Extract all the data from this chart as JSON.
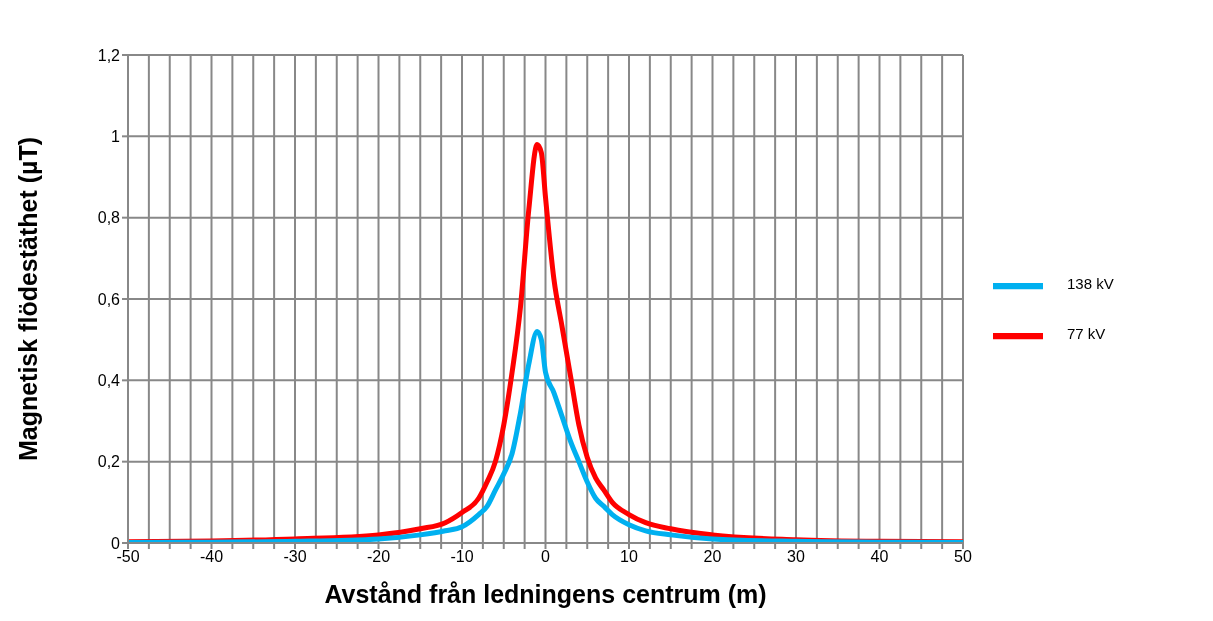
{
  "chart_data": {
    "type": "line",
    "xlabel": "Avstånd från ledningens centrum (m)",
    "ylabel": "Magnetisk flödestäthet (µT)",
    "xlim": [
      -50,
      50
    ],
    "xticks": [
      -50,
      {
        "value": -47.5,
        "label": null
      },
      {
        "value": -45,
        "label": null
      },
      {
        "value": -42.5,
        "label": null
      },
      -40,
      {
        "value": -37.5,
        "label": null
      },
      {
        "value": -35,
        "label": null
      },
      {
        "value": -32.5,
        "label": null
      },
      -30,
      {
        "value": -27.5,
        "label": null
      },
      {
        "value": -25,
        "label": null
      },
      {
        "value": -22.5,
        "label": null
      },
      -20,
      {
        "value": -17.5,
        "label": null
      },
      {
        "value": -15,
        "label": null
      },
      {
        "value": -12.5,
        "label": null
      },
      -10,
      {
        "value": -7.5,
        "label": null
      },
      {
        "value": -5,
        "label": null
      },
      {
        "value": -2.5,
        "label": null
      },
      0,
      {
        "value": 2.5,
        "label": null
      },
      {
        "value": 5,
        "label": null
      },
      {
        "value": 7.5,
        "label": null
      },
      10,
      {
        "value": 12.5,
        "label": null
      },
      {
        "value": 15,
        "label": null
      },
      {
        "value": 17.5,
        "label": null
      },
      20,
      {
        "value": 22.5,
        "label": null
      },
      {
        "value": 25,
        "label": null
      },
      {
        "value": 27.5,
        "label": null
      },
      30,
      {
        "value": 32.5,
        "label": null
      },
      {
        "value": 35,
        "label": null
      },
      {
        "value": 37.5,
        "label": null
      },
      40,
      {
        "value": 42.5,
        "label": null
      },
      {
        "value": 45,
        "label": null
      },
      {
        "value": 47.5,
        "label": null
      },
      50
    ],
    "ylim": [
      0,
      1.2
    ],
    "yticks": [
      0,
      {
        "value": 0.2,
        "label": "0,2"
      },
      {
        "value": 0.4,
        "label": "0,4"
      },
      {
        "value": 0.6,
        "label": "0,6"
      },
      {
        "value": 0.8,
        "label": "0,8"
      },
      1,
      {
        "value": 1.2,
        "label": "1,2"
      }
    ],
    "grid": true,
    "legend": "right",
    "marker": "none",
    "line_style": "solid",
    "series": [
      {
        "name": "77 kV",
        "color": "#ff0000",
        "x": [
          -50,
          -40,
          -30,
          -20,
          -15,
          -12,
          -10,
          -8,
          -7,
          -6,
          -5,
          -4,
          -3,
          -2,
          -1,
          -0.5,
          0,
          1,
          2,
          3,
          4,
          5,
          6,
          7,
          8,
          10,
          12,
          15,
          20,
          30,
          40,
          50
        ],
        "values": [
          0.003,
          0.005,
          0.01,
          0.02,
          0.035,
          0.05,
          0.075,
          0.11,
          0.15,
          0.2,
          0.29,
          0.42,
          0.58,
          0.82,
          0.98,
          0.96,
          0.85,
          0.65,
          0.53,
          0.41,
          0.29,
          0.21,
          0.16,
          0.13,
          0.1,
          0.07,
          0.05,
          0.035,
          0.02,
          0.008,
          0.004,
          0.003
        ]
      },
      {
        "name": "138 kV",
        "color": "#00b0f0",
        "x": [
          -50,
          -40,
          -30,
          -20,
          -15,
          -12,
          -10,
          -8,
          -7,
          -6,
          -5,
          -4,
          -3,
          -2,
          -1,
          -0.5,
          0,
          1,
          2,
          3,
          4,
          5,
          6,
          7,
          8,
          10,
          12,
          15,
          20,
          30,
          40,
          50
        ],
        "values": [
          0.001,
          0.002,
          0.004,
          0.01,
          0.02,
          0.03,
          0.04,
          0.07,
          0.09,
          0.13,
          0.17,
          0.22,
          0.32,
          0.44,
          0.52,
          0.5,
          0.42,
          0.37,
          0.31,
          0.25,
          0.2,
          0.15,
          0.11,
          0.09,
          0.07,
          0.045,
          0.03,
          0.02,
          0.01,
          0.004,
          0.002,
          0.001
        ]
      }
    ]
  }
}
